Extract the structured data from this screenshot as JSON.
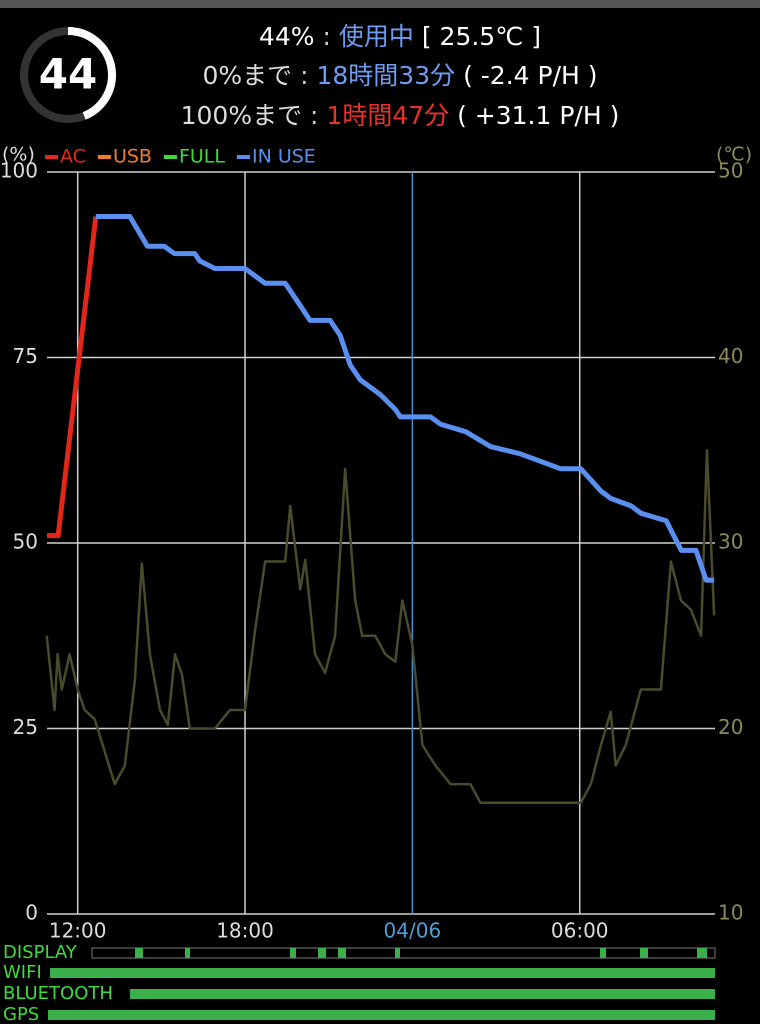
{
  "gauge": {
    "value": 44
  },
  "header": {
    "lines": [
      [
        "44%",
        " : ",
        "使用中",
        " [ 25.5℃ ]"
      ],
      [
        "0%まで",
        " : ",
        "18時間33分",
        " ( -2.4 P/H )"
      ],
      [
        "100%まで",
        " : ",
        "1時間47分",
        " ( +31.1 P/H )"
      ]
    ]
  },
  "chart_data": {
    "type": "line",
    "y_label": "(%)",
    "y2_label": "(℃)",
    "xlim": [
      10.9,
      34.85
    ],
    "xticks": [
      {
        "value": 12,
        "label": "12:00"
      },
      {
        "value": 18,
        "label": "18:00"
      },
      {
        "value": 24,
        "label": "04/06"
      },
      {
        "value": 30,
        "label": "06:00"
      }
    ],
    "ylim": [
      0,
      100
    ],
    "yticks": [
      0,
      25,
      50,
      75,
      100
    ],
    "y2lim": [
      10,
      50
    ],
    "y2ticks": [
      10,
      20,
      30,
      40,
      50
    ],
    "grid": true,
    "series": [
      {
        "name": "AC",
        "color": "#e3261b",
        "x": [
          10.9,
          11.3,
          12.65
        ],
        "values": [
          51,
          51,
          94
        ]
      },
      {
        "name": "USB",
        "color": "#f07d2a",
        "x": [],
        "values": []
      },
      {
        "name": "FULL",
        "color": "#3ddc3d",
        "x": [],
        "values": []
      },
      {
        "name": "IN USE",
        "color": "#5a8ff0",
        "x": [
          12.65,
          13.87,
          14.5,
          15.1,
          15.47,
          16.2,
          16.38,
          16.92,
          18.0,
          18.72,
          19.44,
          19.98,
          20.33,
          21.05,
          21.41,
          21.77,
          22.13,
          22.85,
          23.39,
          23.57,
          24.65,
          25.01,
          25.91,
          26.8,
          27.88,
          29.32,
          30.04,
          30.76,
          31.12,
          31.84,
          32.2,
          33.1,
          33.64,
          34.17,
          34.53,
          34.82
        ],
        "values": [
          94,
          94,
          90,
          90,
          89,
          89,
          88,
          87,
          87,
          85,
          85,
          82,
          80,
          80,
          78,
          74,
          72,
          70,
          68,
          67,
          67,
          66,
          65,
          63,
          62,
          60,
          60,
          57,
          56,
          55,
          54,
          53,
          49,
          49,
          45,
          45
        ]
      },
      {
        "axis": "y2",
        "color": "#4a4a2c",
        "x": [
          10.89,
          11.17,
          11.28,
          11.43,
          11.71,
          12,
          12.25,
          12.61,
          13.33,
          13.69,
          14.05,
          14.3,
          14.59,
          14.95,
          15.23,
          15.49,
          15.74,
          16.02,
          16.92,
          17.46,
          18,
          18.36,
          18.72,
          19.44,
          19.62,
          19.98,
          20.16,
          20.51,
          20.87,
          21.23,
          21.59,
          21.95,
          22.2,
          22.67,
          23.03,
          23.39,
          23.64,
          24,
          24.36,
          24.83,
          25.37,
          26.08,
          26.44,
          30.04,
          30.4,
          30.76,
          31.11,
          31.29,
          31.65,
          32.19,
          32.91,
          33.27,
          33.63,
          33.99,
          34.35,
          34.56,
          34.82
        ],
        "values": [
          25.0,
          21.0,
          24.0,
          22.1,
          24.0,
          22.1,
          21.0,
          20.5,
          17.0,
          18.0,
          22.6,
          28.9,
          24.0,
          21.0,
          20.2,
          24.0,
          22.9,
          20.0,
          20.0,
          21.0,
          21.0,
          25.3,
          29.0,
          29.0,
          32.0,
          27.5,
          29.1,
          24.0,
          23.0,
          25.0,
          34.0,
          26.9,
          25.0,
          25.0,
          24.0,
          23.6,
          26.9,
          24.5,
          19.1,
          18.0,
          17.0,
          17.0,
          16.0,
          16.0,
          17.0,
          19.1,
          20.9,
          18.0,
          19.1,
          22.1,
          22.1,
          29.0,
          26.9,
          26.4,
          25.0,
          35.0,
          26.1
        ]
      }
    ]
  },
  "status_rows": [
    "DISPLAY",
    "WIFI",
    "BLUETOOTH",
    "GPS"
  ]
}
